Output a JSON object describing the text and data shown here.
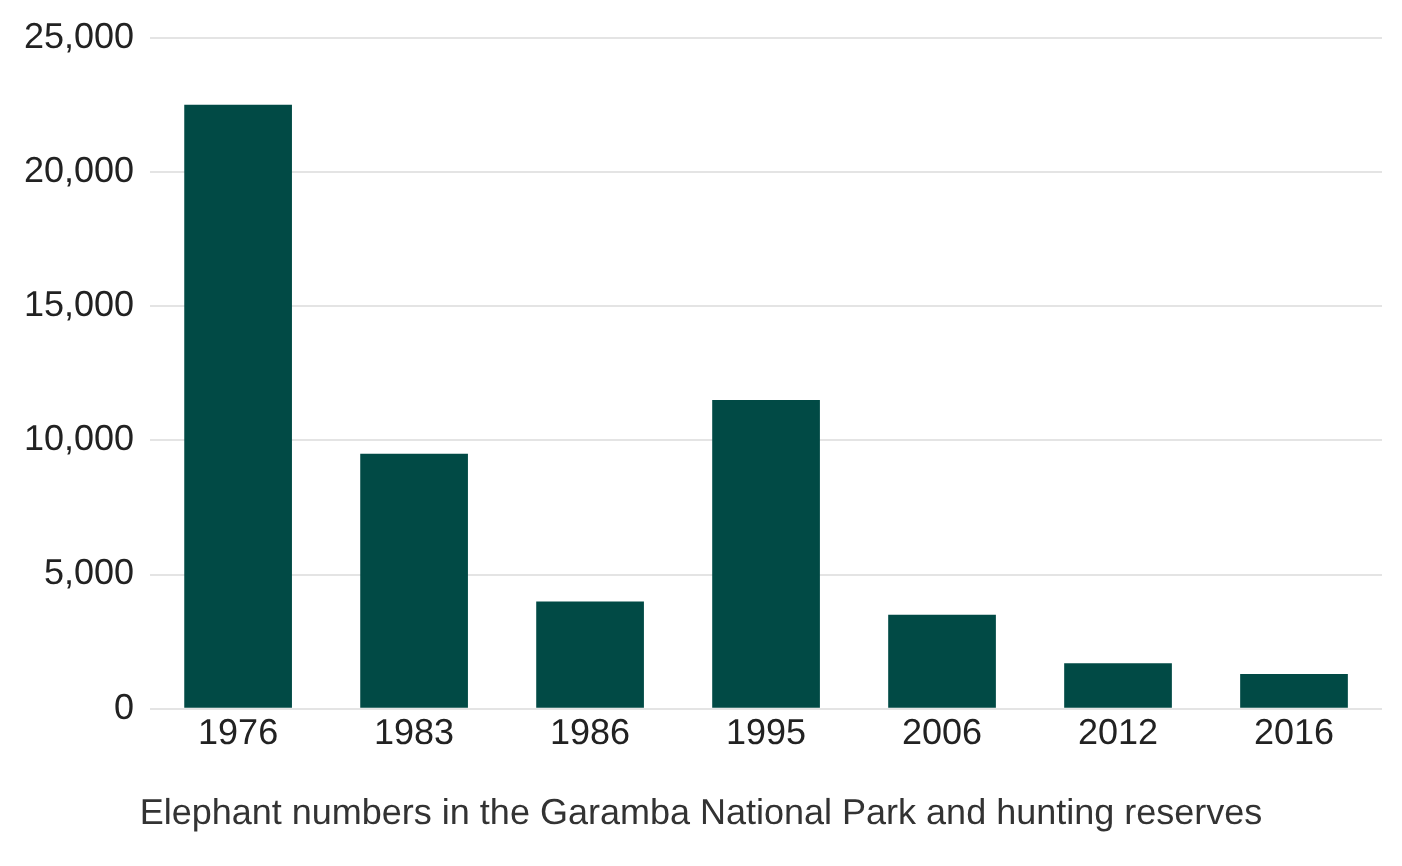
{
  "chart_data": {
    "type": "bar",
    "categories": [
      "1976",
      "1983",
      "1986",
      "1995",
      "2006",
      "2012",
      "2016"
    ],
    "values": [
      22500,
      9500,
      4000,
      11500,
      3500,
      1700,
      1300
    ],
    "color": "#014a45",
    "ylim": [
      0,
      25000
    ],
    "yticks": [
      0,
      {
        "value": 5000,
        "label": "5,000"
      },
      {
        "value": 10000,
        "label": "10,000"
      },
      {
        "value": 15000,
        "label": "15,000"
      },
      {
        "value": 20000,
        "label": "20,000"
      },
      {
        "value": 25000,
        "label": "25,000"
      }
    ],
    "grid": "y",
    "annotations": [
      "Elephant numbers in the Garamba National Park and hunting reserves"
    ]
  }
}
